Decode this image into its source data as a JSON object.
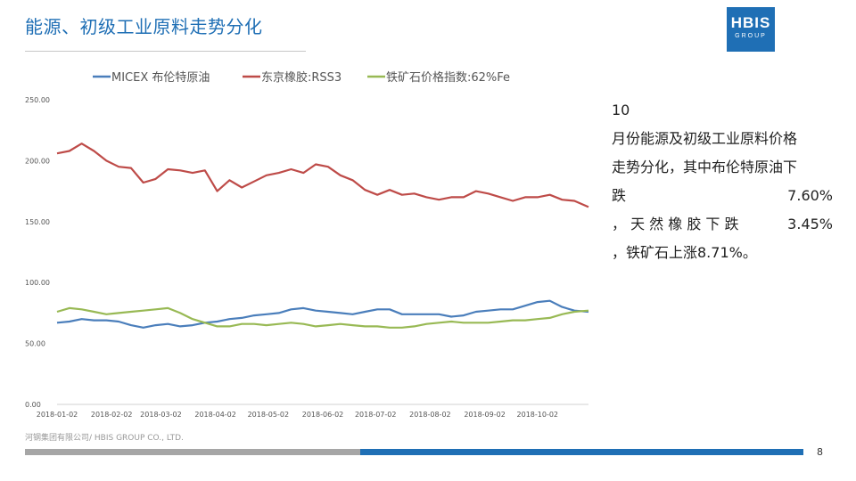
{
  "title": "能源、初级工业原料走势分化",
  "logo": {
    "main": "HBIS",
    "sub": "GROUP"
  },
  "side_text": {
    "line1": "10",
    "line2": "月份能源及初级工业原料价格",
    "line3": "走势分化，其中布伦特原油下",
    "line4a": "跌",
    "line4b": "7.60%",
    "line5": "， 天 然 橡 胶 下 跌",
    "line5b": "3.45%",
    "line6": "，铁矿石上涨8.71%。"
  },
  "footer": {
    "company": "河钢集团有限公司/ HBIS GROUP CO., LTD.",
    "page": "8"
  },
  "colors": {
    "accent": "#1f6fb5",
    "oil": "#4a7ebb",
    "rubber": "#be4b48",
    "iron": "#98b954"
  },
  "chart_data": {
    "type": "line",
    "title": "",
    "xlabel": "",
    "ylabel": "",
    "ylim": [
      0,
      250
    ],
    "yticks": [
      "0.00",
      "50.00",
      "100.00",
      "150.00",
      "200.00",
      "250.00"
    ],
    "xticks": [
      "2018-01-02",
      "2018-02-02",
      "2018-03-02",
      "2018-04-02",
      "2018-05-02",
      "2018-06-02",
      "2018-07-02",
      "2018-08-02",
      "2018-09-02",
      "2018-10-02"
    ],
    "x_end": "2018-10-31",
    "grid": false,
    "legend_position": "top",
    "series": [
      {
        "name": "MICEX 布伦特原油",
        "color": "#4a7ebb",
        "points": [
          [
            "2018-01-02",
            67
          ],
          [
            "2018-01-09",
            68
          ],
          [
            "2018-01-16",
            70
          ],
          [
            "2018-01-23",
            69
          ],
          [
            "2018-01-30",
            69
          ],
          [
            "2018-02-06",
            68
          ],
          [
            "2018-02-13",
            65
          ],
          [
            "2018-02-20",
            63
          ],
          [
            "2018-02-27",
            65
          ],
          [
            "2018-03-06",
            66
          ],
          [
            "2018-03-13",
            64
          ],
          [
            "2018-03-20",
            65
          ],
          [
            "2018-03-27",
            67
          ],
          [
            "2018-04-03",
            68
          ],
          [
            "2018-04-10",
            70
          ],
          [
            "2018-04-17",
            71
          ],
          [
            "2018-04-24",
            73
          ],
          [
            "2018-05-01",
            74
          ],
          [
            "2018-05-08",
            75
          ],
          [
            "2018-05-15",
            78
          ],
          [
            "2018-05-22",
            79
          ],
          [
            "2018-05-29",
            77
          ],
          [
            "2018-06-05",
            76
          ],
          [
            "2018-06-12",
            75
          ],
          [
            "2018-06-19",
            74
          ],
          [
            "2018-06-26",
            76
          ],
          [
            "2018-07-03",
            78
          ],
          [
            "2018-07-10",
            78
          ],
          [
            "2018-07-17",
            74
          ],
          [
            "2018-07-24",
            74
          ],
          [
            "2018-07-31",
            74
          ],
          [
            "2018-08-07",
            74
          ],
          [
            "2018-08-14",
            72
          ],
          [
            "2018-08-21",
            73
          ],
          [
            "2018-08-28",
            76
          ],
          [
            "2018-09-04",
            77
          ],
          [
            "2018-09-11",
            78
          ],
          [
            "2018-09-18",
            78
          ],
          [
            "2018-09-25",
            81
          ],
          [
            "2018-10-02",
            84
          ],
          [
            "2018-10-09",
            85
          ],
          [
            "2018-10-16",
            80
          ],
          [
            "2018-10-23",
            77
          ],
          [
            "2018-10-31",
            76
          ]
        ]
      },
      {
        "name": "东京橡胶:RSS3",
        "color": "#be4b48",
        "points": [
          [
            "2018-01-02",
            206
          ],
          [
            "2018-01-09",
            208
          ],
          [
            "2018-01-16",
            214
          ],
          [
            "2018-01-23",
            208
          ],
          [
            "2018-01-30",
            200
          ],
          [
            "2018-02-06",
            195
          ],
          [
            "2018-02-13",
            194
          ],
          [
            "2018-02-20",
            182
          ],
          [
            "2018-02-27",
            185
          ],
          [
            "2018-03-06",
            193
          ],
          [
            "2018-03-13",
            192
          ],
          [
            "2018-03-20",
            190
          ],
          [
            "2018-03-27",
            192
          ],
          [
            "2018-04-03",
            175
          ],
          [
            "2018-04-10",
            184
          ],
          [
            "2018-04-17",
            178
          ],
          [
            "2018-04-24",
            183
          ],
          [
            "2018-05-01",
            188
          ],
          [
            "2018-05-08",
            190
          ],
          [
            "2018-05-15",
            193
          ],
          [
            "2018-05-22",
            190
          ],
          [
            "2018-05-29",
            197
          ],
          [
            "2018-06-05",
            195
          ],
          [
            "2018-06-12",
            188
          ],
          [
            "2018-06-19",
            184
          ],
          [
            "2018-06-26",
            176
          ],
          [
            "2018-07-03",
            172
          ],
          [
            "2018-07-10",
            176
          ],
          [
            "2018-07-17",
            172
          ],
          [
            "2018-07-24",
            173
          ],
          [
            "2018-07-31",
            170
          ],
          [
            "2018-08-07",
            168
          ],
          [
            "2018-08-14",
            170
          ],
          [
            "2018-08-21",
            170
          ],
          [
            "2018-08-28",
            175
          ],
          [
            "2018-09-04",
            173
          ],
          [
            "2018-09-11",
            170
          ],
          [
            "2018-09-18",
            167
          ],
          [
            "2018-09-25",
            170
          ],
          [
            "2018-10-02",
            170
          ],
          [
            "2018-10-09",
            172
          ],
          [
            "2018-10-16",
            168
          ],
          [
            "2018-10-23",
            167
          ],
          [
            "2018-10-31",
            162
          ]
        ]
      },
      {
        "name": "铁矿石价格指数:62%Fe",
        "color": "#98b954",
        "points": [
          [
            "2018-01-02",
            76
          ],
          [
            "2018-01-09",
            79
          ],
          [
            "2018-01-16",
            78
          ],
          [
            "2018-01-23",
            76
          ],
          [
            "2018-01-30",
            74
          ],
          [
            "2018-02-06",
            75
          ],
          [
            "2018-02-13",
            76
          ],
          [
            "2018-02-20",
            77
          ],
          [
            "2018-02-27",
            78
          ],
          [
            "2018-03-06",
            79
          ],
          [
            "2018-03-13",
            75
          ],
          [
            "2018-03-20",
            70
          ],
          [
            "2018-03-27",
            67
          ],
          [
            "2018-04-03",
            64
          ],
          [
            "2018-04-10",
            64
          ],
          [
            "2018-04-17",
            66
          ],
          [
            "2018-04-24",
            66
          ],
          [
            "2018-05-01",
            65
          ],
          [
            "2018-05-08",
            66
          ],
          [
            "2018-05-15",
            67
          ],
          [
            "2018-05-22",
            66
          ],
          [
            "2018-05-29",
            64
          ],
          [
            "2018-06-05",
            65
          ],
          [
            "2018-06-12",
            66
          ],
          [
            "2018-06-19",
            65
          ],
          [
            "2018-06-26",
            64
          ],
          [
            "2018-07-03",
            64
          ],
          [
            "2018-07-10",
            63
          ],
          [
            "2018-07-17",
            63
          ],
          [
            "2018-07-24",
            64
          ],
          [
            "2018-07-31",
            66
          ],
          [
            "2018-08-07",
            67
          ],
          [
            "2018-08-14",
            68
          ],
          [
            "2018-08-21",
            67
          ],
          [
            "2018-08-28",
            67
          ],
          [
            "2018-09-04",
            67
          ],
          [
            "2018-09-11",
            68
          ],
          [
            "2018-09-18",
            69
          ],
          [
            "2018-09-25",
            69
          ],
          [
            "2018-10-02",
            70
          ],
          [
            "2018-10-09",
            71
          ],
          [
            "2018-10-16",
            74
          ],
          [
            "2018-10-23",
            76
          ],
          [
            "2018-10-31",
            77
          ]
        ]
      }
    ]
  }
}
